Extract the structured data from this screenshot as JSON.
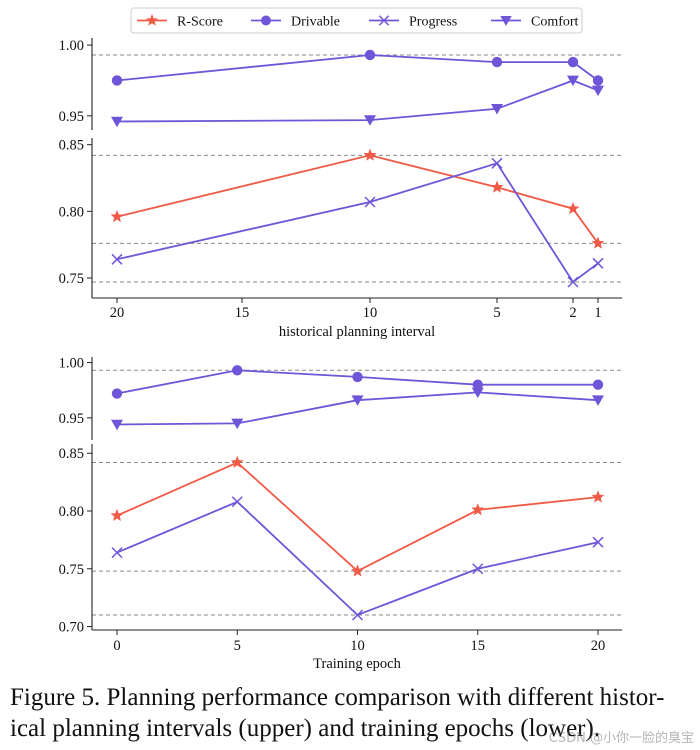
{
  "legend": {
    "items": [
      {
        "label": "R-Score",
        "color": "#f05a46",
        "marker": "star-icon"
      },
      {
        "label": "Drivable",
        "color": "#6f55d8",
        "marker": "circle-icon"
      },
      {
        "label": "Progress",
        "color": "#6f55d8",
        "marker": "x-icon"
      },
      {
        "label": "Comfort",
        "color": "#6f55d8",
        "marker": "triangle-down-icon"
      }
    ]
  },
  "chart_data": [
    {
      "type": "line",
      "xlabel": "historical planning interval",
      "x": [
        20,
        10,
        5,
        2,
        1
      ],
      "x_ticks": [
        "20",
        "15",
        "10",
        "5",
        "2",
        "1"
      ],
      "x_scale": "reciprocal",
      "top_panel": {
        "ylim": [
          0.94,
          1.005
        ],
        "y_ticks": [
          "1.00",
          "0.95"
        ],
        "reference_lines": [
          0.993
        ],
        "series": [
          {
            "name": "Drivable",
            "marker": "circle",
            "color": "#6f55d8",
            "values": [
              0.975,
              0.993,
              0.988,
              0.988,
              0.975
            ]
          },
          {
            "name": "Comfort",
            "marker": "triangle-down",
            "color": "#6f55d8",
            "values": [
              0.946,
              0.947,
              0.955,
              0.975,
              0.968
            ]
          }
        ]
      },
      "bottom_panel": {
        "ylim": [
          0.735,
          0.855
        ],
        "y_ticks": [
          "0.85",
          "0.80",
          "0.75"
        ],
        "reference_lines": [
          0.842,
          0.776,
          0.747
        ],
        "series": [
          {
            "name": "R-Score",
            "marker": "star",
            "color": "#f05a46",
            "values": [
              0.796,
              0.842,
              0.818,
              0.802,
              0.776
            ]
          },
          {
            "name": "Progress",
            "marker": "x",
            "color": "#6f55d8",
            "values": [
              0.764,
              0.807,
              0.836,
              0.747,
              0.761
            ]
          }
        ]
      }
    },
    {
      "type": "line",
      "xlabel": "Training epoch",
      "x": [
        0,
        5,
        10,
        15,
        20
      ],
      "x_ticks": [
        "0",
        "5",
        "10",
        "15",
        "20"
      ],
      "top_panel": {
        "ylim": [
          0.93,
          1.005
        ],
        "y_ticks": [
          "1.00",
          "0.95"
        ],
        "reference_lines": [
          0.993
        ],
        "series": [
          {
            "name": "Drivable",
            "marker": "circle",
            "color": "#6f55d8",
            "values": [
              0.972,
              0.993,
              0.987,
              0.98,
              0.98
            ]
          },
          {
            "name": "Comfort",
            "marker": "triangle-down",
            "color": "#6f55d8",
            "values": [
              0.944,
              0.945,
              0.966,
              0.973,
              0.966
            ]
          }
        ]
      },
      "bottom_panel": {
        "ylim": [
          0.697,
          0.858
        ],
        "y_ticks": [
          "0.85",
          "0.80",
          "0.75",
          "0.70"
        ],
        "reference_lines": [
          0.842,
          0.748,
          0.71
        ],
        "series": [
          {
            "name": "R-Score",
            "marker": "star",
            "color": "#f05a46",
            "values": [
              0.796,
              0.842,
              0.748,
              0.801,
              0.812
            ]
          },
          {
            "name": "Progress",
            "marker": "x",
            "color": "#6f55d8",
            "values": [
              0.764,
              0.808,
              0.71,
              0.75,
              0.773
            ]
          }
        ]
      }
    }
  ],
  "caption": {
    "line1": "Figure 5. Planning performance comparison with different histor-",
    "line2": "ical planning intervals (upper) and training epochs (lower)."
  },
  "watermark": "CSDN @小你一脸的臭宝"
}
